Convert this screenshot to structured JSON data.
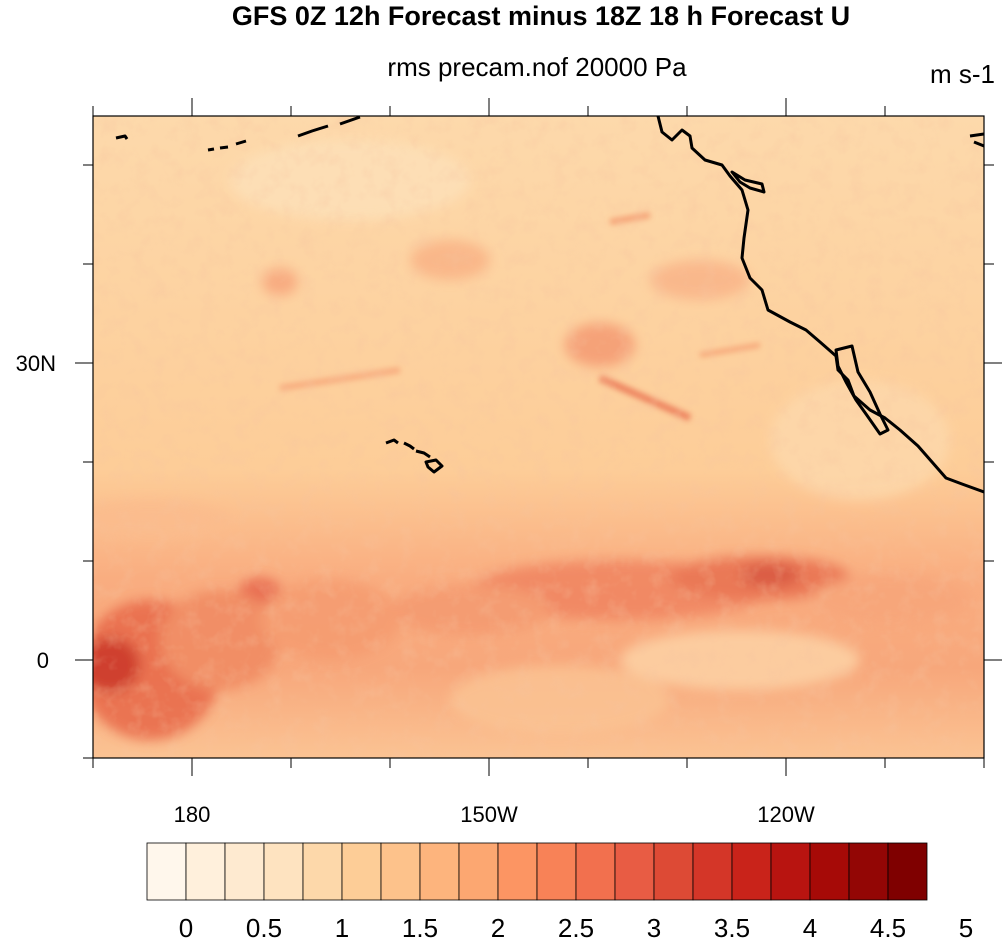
{
  "title": "GFS 0Z 12h Forecast minus 18Z 18 h Forecast U",
  "subtitle": "rms precam.nof 20000 Pa",
  "units": "m s-1",
  "lon_labels": [
    "180",
    "150W",
    "120W"
  ],
  "lat_labels": [
    "30N",
    "0"
  ],
  "colorbar": {
    "labels": [
      "0",
      "0.5",
      "1",
      "1.5",
      "2",
      "2.5",
      "3",
      "3.5",
      "4",
      "4.5",
      "5"
    ],
    "colors": [
      "#fff7ec",
      "#fff0dc",
      "#feead0",
      "#fee3c0",
      "#fdd8aa",
      "#fdcd97",
      "#fdc28b",
      "#fdb47d",
      "#fca771",
      "#fc9563",
      "#f88257",
      "#f2704e",
      "#e85c44",
      "#dd4a35",
      "#d43628",
      "#c9231a",
      "#b81410",
      "#a60a07",
      "#930605",
      "#7f0000"
    ]
  },
  "map": {
    "lon_range": [
      -190,
      -100
    ],
    "lat_range": [
      -10,
      55
    ],
    "background_color": "#fdd5a4",
    "coastline_color": "#000000"
  }
}
